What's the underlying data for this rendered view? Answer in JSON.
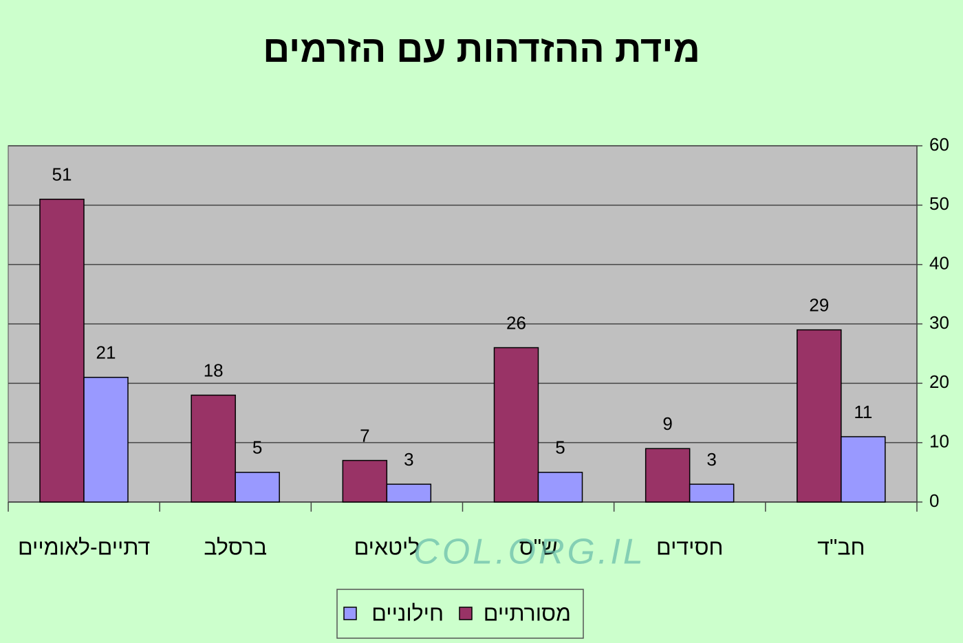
{
  "chart_data": {
    "type": "bar",
    "title": "מידת ההזדהות עם הזרמים",
    "categories": [
      "דתיים-לאומיים",
      "ברסלב",
      "ליטאים",
      "ש\"ס",
      "חסידים",
      "חב\"ד"
    ],
    "series": [
      {
        "name": "מסורתיים",
        "color": "#993366",
        "values": [
          51,
          18,
          7,
          26,
          9,
          29
        ]
      },
      {
        "name": "חילוניים",
        "color": "#9999ff",
        "values": [
          21,
          5,
          3,
          5,
          3,
          11
        ]
      }
    ],
    "ylim": [
      0,
      60
    ],
    "yticks": [
      0,
      10,
      20,
      30,
      40,
      50,
      60
    ],
    "grid": true,
    "y_axis_side": "right",
    "legend": "bottom",
    "watermark": "COL.ORG.IL"
  }
}
